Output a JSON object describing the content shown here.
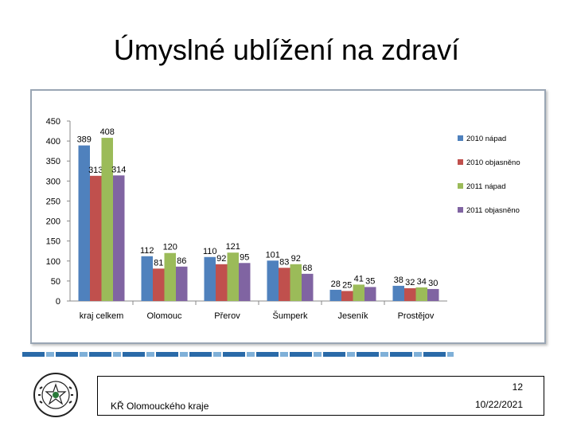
{
  "title": "Úmyslné ublížení na zdraví",
  "footer": {
    "page_number": "12",
    "organization": "KŘ Olomouckého kraje",
    "date": "10/22/2021"
  },
  "seal": {
    "text_top": "POLICIE",
    "text_bottom": "ČESKÉ REPUBLIKY"
  },
  "chart_data": {
    "type": "bar",
    "categories": [
      "kraj celkem",
      "Olomouc",
      "Přerov",
      "Šumperk",
      "Jeseník",
      "Prostějov"
    ],
    "series": [
      {
        "name": "2010 nápad",
        "color": "#4f81bd",
        "values": [
          389,
          112,
          110,
          101,
          28,
          38
        ]
      },
      {
        "name": "2010 objasněno",
        "color": "#c0504d",
        "values": [
          313,
          81,
          92,
          83,
          25,
          32
        ]
      },
      {
        "name": "2011 nápad",
        "color": "#9bbb59",
        "values": [
          408,
          120,
          121,
          92,
          41,
          34
        ]
      },
      {
        "name": "2011 objasněno",
        "color": "#8064a2",
        "values": [
          314,
          86,
          95,
          68,
          35,
          30
        ]
      }
    ],
    "ylim": [
      0,
      450
    ],
    "yticks": [
      0,
      50,
      100,
      150,
      200,
      250,
      300,
      350,
      400,
      450
    ],
    "grid": false,
    "legend": "right"
  }
}
